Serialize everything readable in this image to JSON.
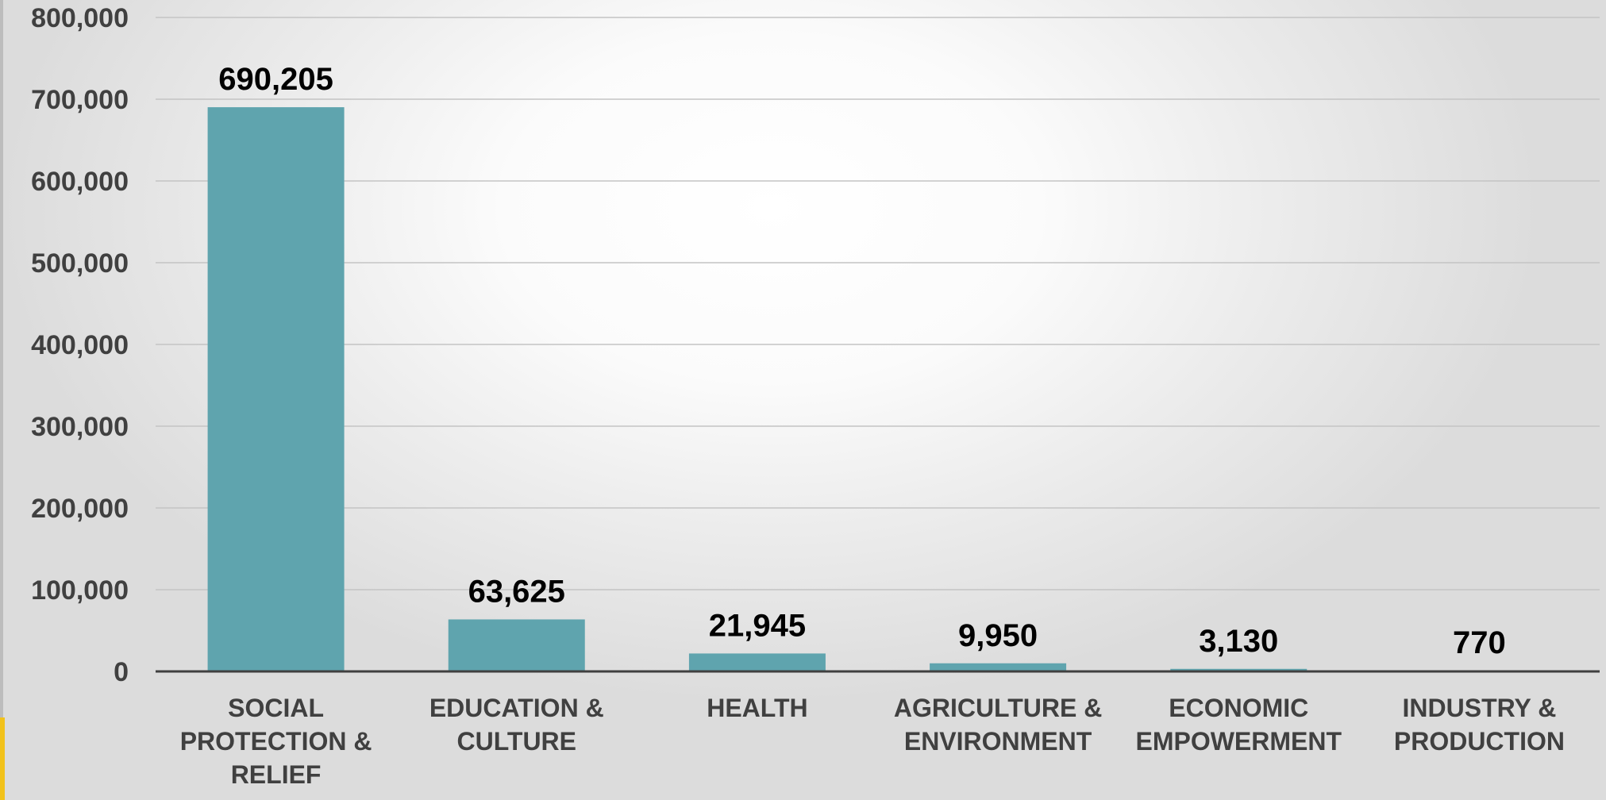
{
  "chart_data": {
    "type": "bar",
    "categories": [
      [
        "SOCIAL",
        "PROTECTION &",
        "RELIEF"
      ],
      [
        "EDUCATION &",
        "CULTURE"
      ],
      [
        "HEALTH"
      ],
      [
        "AGRICULTURE &",
        "ENVIRONMENT"
      ],
      [
        "ECONOMIC",
        "EMPOWERMENT"
      ],
      [
        "INDUSTRY &",
        "PRODUCTION"
      ]
    ],
    "values": [
      690205,
      63625,
      21945,
      9950,
      3130,
      770
    ],
    "value_labels": [
      "690,205",
      "63,625",
      "21,945",
      "9,950",
      "3,130",
      "770"
    ],
    "y_ticks": [
      "0",
      "100,000",
      "200,000",
      "300,000",
      "400,000",
      "500,000",
      "600,000",
      "700,000",
      "800,000"
    ],
    "ylim": [
      0,
      800000
    ],
    "grid": true,
    "legend": "none",
    "bar_color": "#5fa4ae"
  }
}
